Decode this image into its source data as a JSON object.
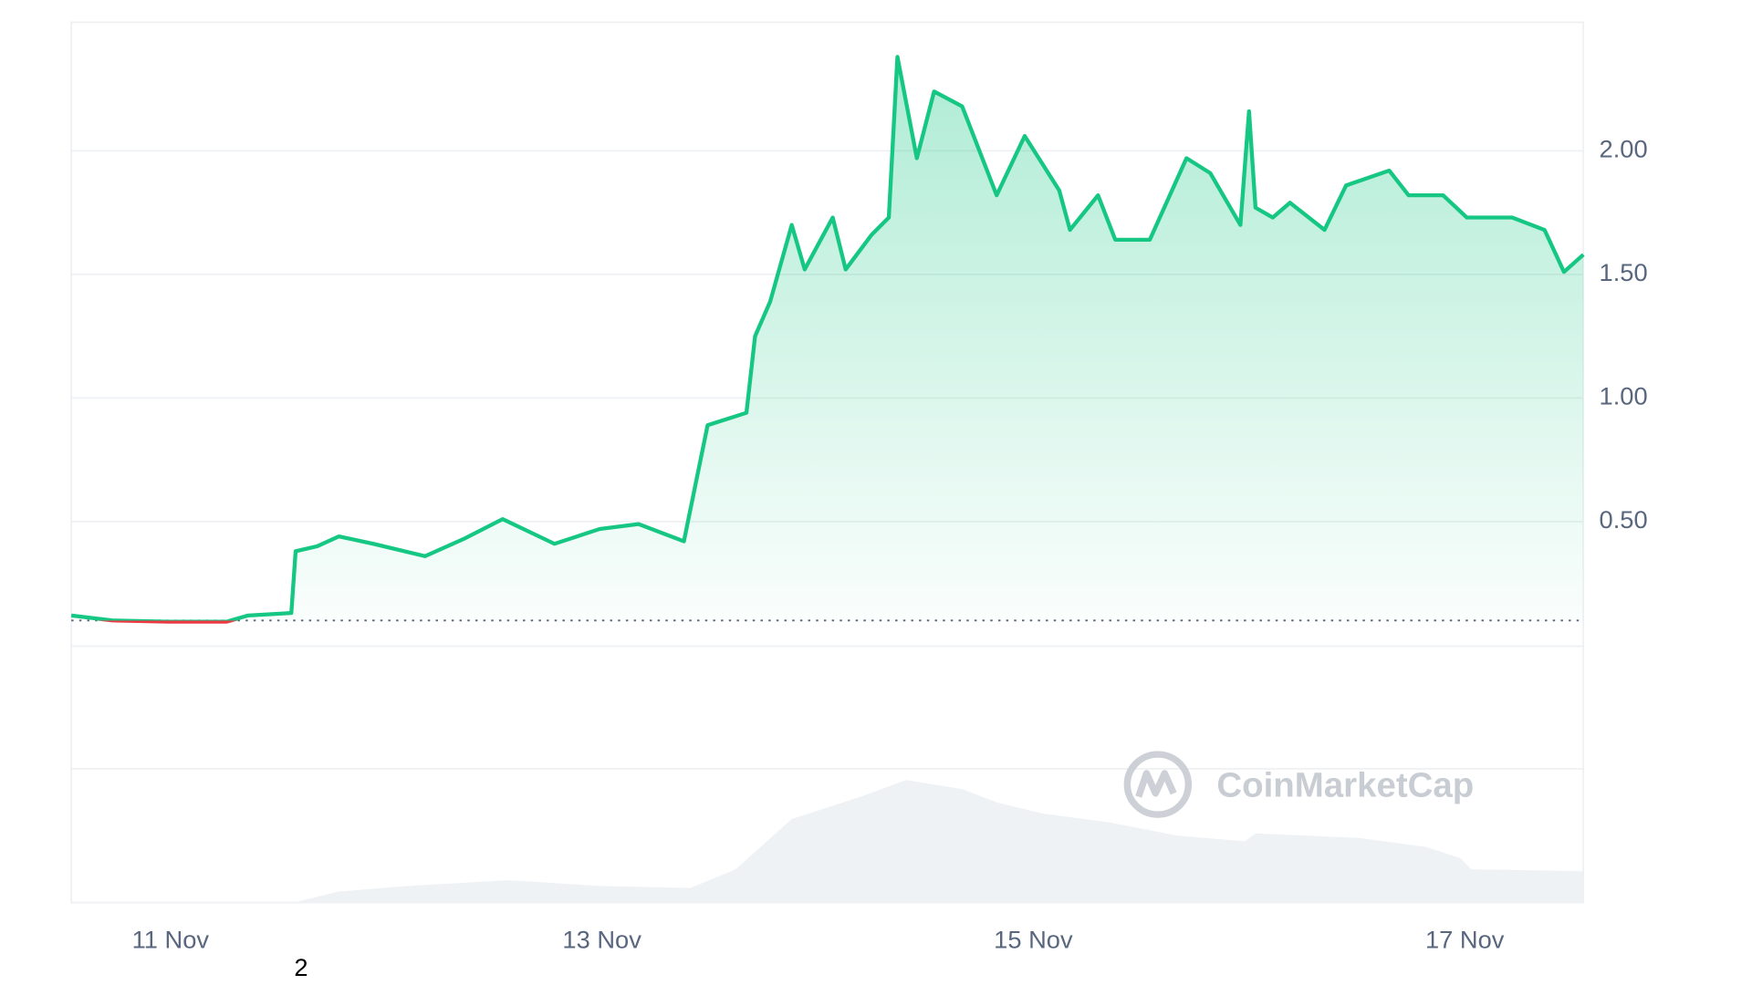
{
  "chart_data": {
    "type": "line",
    "x": [
      10.54,
      10.73,
      10.99,
      11.26,
      11.36,
      11.56,
      11.58,
      11.68,
      11.78,
      11.94,
      12.18,
      12.36,
      12.54,
      12.78,
      12.99,
      13.17,
      13.38,
      13.49,
      13.67,
      13.71,
      13.78,
      13.88,
      13.94,
      14.07,
      14.13,
      14.25,
      14.33,
      14.37,
      14.46,
      14.54,
      14.67,
      14.83,
      14.96,
      15.12,
      15.17,
      15.3,
      15.38,
      15.54,
      15.71,
      15.82,
      15.96,
      16.0,
      16.03,
      16.11,
      16.19,
      16.35,
      16.45,
      16.65,
      16.74,
      16.9,
      17.01,
      17.22,
      17.37,
      17.46,
      17.55
    ],
    "values": [
      0.12,
      0.1,
      0.095,
      0.095,
      0.12,
      0.13,
      0.38,
      0.4,
      0.44,
      0.41,
      0.36,
      0.43,
      0.51,
      0.41,
      0.47,
      0.49,
      0.42,
      0.89,
      0.94,
      1.25,
      1.39,
      1.7,
      1.52,
      1.73,
      1.52,
      1.66,
      1.73,
      2.38,
      1.97,
      2.24,
      2.18,
      1.82,
      2.06,
      1.84,
      1.68,
      1.82,
      1.64,
      1.64,
      1.97,
      1.91,
      1.7,
      2.16,
      1.77,
      1.73,
      1.79,
      1.68,
      1.86,
      1.92,
      1.82,
      1.82,
      1.73,
      1.73,
      1.68,
      1.51,
      1.58
    ],
    "color": "#16c784",
    "down_color": "#ea3943",
    "baseline": 0.1,
    "xlim": [
      10.54,
      17.55
    ],
    "xticks": [
      {
        "value": 11,
        "label": "11 Nov"
      },
      {
        "value": 13,
        "label": "13 Nov"
      },
      {
        "value": 15,
        "label": "15 Nov"
      },
      {
        "value": 17,
        "label": "17 Nov"
      }
    ],
    "ylim": [
      0,
      2.52
    ],
    "yticks": [
      {
        "value": 0.5,
        "label": "0.50"
      },
      {
        "value": 1,
        "label": "1.00"
      },
      {
        "value": 1.5,
        "label": "1.50"
      },
      {
        "value": 2,
        "label": "2.00"
      }
    ],
    "grid": true,
    "volume": {
      "x": [
        10.54,
        11.57,
        11.78,
        12.1,
        12.57,
        12.99,
        13.41,
        13.62,
        13.88,
        14.2,
        14.41,
        14.67,
        14.83,
        15.04,
        15.35,
        15.67,
        15.98,
        16.03,
        16.51,
        16.82,
        16.98,
        17.03,
        17.55
      ],
      "values": [
        0,
        0,
        4.3,
        6.5,
        8.7,
        6.5,
        5.7,
        13.0,
        32.6,
        41.3,
        47.8,
        44.3,
        39.1,
        34.8,
        31.3,
        26.1,
        23.9,
        27.0,
        25.2,
        21.7,
        17.4,
        13.0,
        12.2
      ],
      "ylim": [
        0,
        100
      ],
      "color": "#eff2f5"
    },
    "watermark": "CoinMarketCap",
    "annotation": "2"
  }
}
